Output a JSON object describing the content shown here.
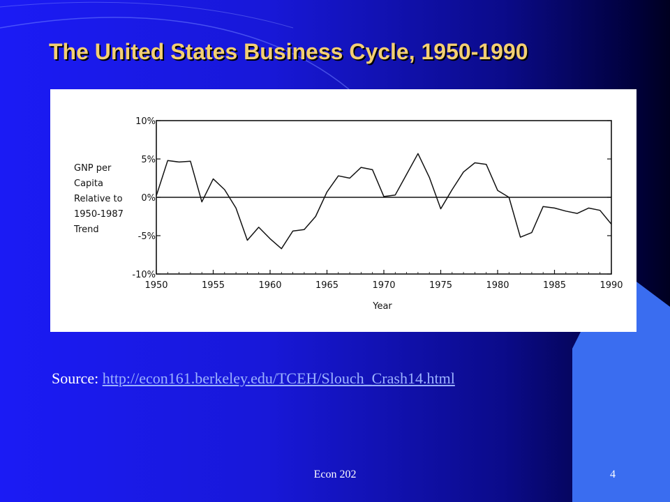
{
  "slide": {
    "title": "The United States Business Cycle, 1950-1990",
    "source_label": "Source:",
    "source_link": "http://econ161.berkeley.edu/TCEH/Slouch_Crash14.html",
    "footer_text": "Econ 202",
    "page_number": "4"
  },
  "colors": {
    "title": "#f3cf73",
    "background_left": "#1b1bf5",
    "background_right": "#00003a",
    "accent_shape": "#3a6df0",
    "link": "#9db3ff"
  },
  "chart_data": {
    "type": "line",
    "ylabel_lines": [
      "GNP per",
      "Capita",
      "Relative to",
      "1950-1987",
      "Trend"
    ],
    "xlabel": "Year",
    "xlim": [
      1950,
      1990
    ],
    "ylim": [
      -10,
      10
    ],
    "x_ticks": [
      "1950",
      "1955",
      "1960",
      "1965",
      "1970",
      "1975",
      "1980",
      "1985",
      "1990"
    ],
    "y_ticks": [
      "10%",
      "5%",
      "0%",
      "-5%",
      "-10%"
    ],
    "y_tick_values": [
      10,
      5,
      0,
      -5,
      -10
    ],
    "x_tick_values": [
      1950,
      1955,
      1960,
      1965,
      1970,
      1975,
      1980,
      1985,
      1990
    ],
    "reference_line": 0,
    "grid": false,
    "series": [
      {
        "x": [
          1950,
          1951,
          1952,
          1953,
          1954,
          1955,
          1956,
          1957,
          1958,
          1959,
          1960,
          1961,
          1962,
          1963,
          1964,
          1965,
          1966,
          1967,
          1968,
          1969,
          1970,
          1971,
          1972,
          1973,
          1974,
          1975,
          1976,
          1977,
          1978,
          1979,
          1980,
          1981,
          1982,
          1983,
          1984,
          1985,
          1986,
          1987,
          1988,
          1989,
          1990
        ],
        "y": [
          0.2,
          4.8,
          4.6,
          4.7,
          -0.6,
          2.4,
          1.0,
          -1.4,
          -5.6,
          -3.9,
          -5.4,
          -6.7,
          -4.4,
          -4.2,
          -2.5,
          0.7,
          2.8,
          2.5,
          3.9,
          3.6,
          0.1,
          0.3,
          3.0,
          5.7,
          2.6,
          -1.5,
          1.0,
          3.3,
          4.5,
          4.3,
          0.9,
          0.0,
          -5.2,
          -4.6,
          -1.2,
          -1.4,
          -1.8,
          -2.1,
          -1.4,
          -1.7,
          -3.5
        ]
      }
    ]
  }
}
